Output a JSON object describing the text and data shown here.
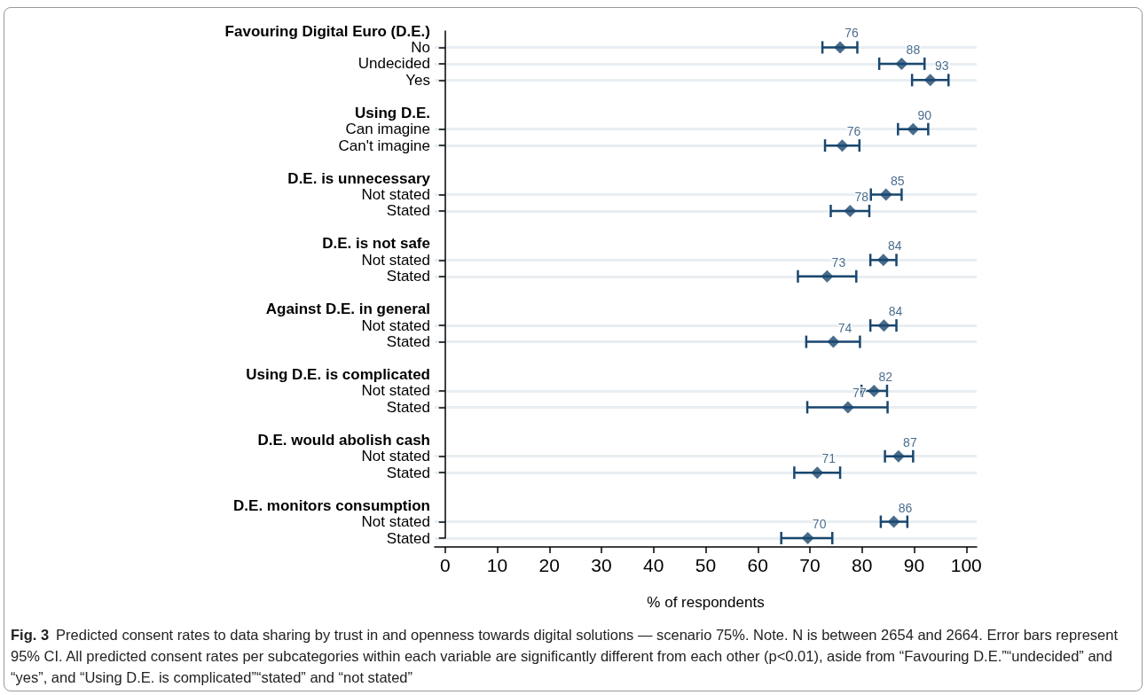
{
  "chart_data": {
    "type": "scatter",
    "orientation": "horizontal",
    "categories": [
      "Favouring Digital Euro (D.E.)",
      "No",
      "Undecided",
      "Yes",
      null,
      "Using D.E.",
      "Can imagine",
      "Can't imagine",
      null,
      "D.E. is unnecessary",
      "Not stated",
      "Stated",
      null,
      "D.E. is not safe",
      "Not stated",
      "Stated",
      null,
      "Against D.E. in general",
      "Not stated",
      "Stated",
      null,
      "Using D.E. is complicated",
      "Not stated",
      "Stated",
      null,
      "D.E. would abolish cash",
      "Not stated",
      "Stated",
      null,
      "D.E. monitors consumption",
      "Not stated",
      "Stated"
    ],
    "values": [
      null,
      75.8,
      87.6,
      93.1,
      null,
      null,
      89.8,
      76.2,
      null,
      null,
      84.6,
      77.7,
      null,
      null,
      84.1,
      73.3,
      null,
      null,
      84.2,
      74.5,
      null,
      null,
      82.3,
      77.3,
      null,
      null,
      87.0,
      71.4,
      null,
      null,
      86.1,
      69.6
    ],
    "errors": [
      null,
      [
        72.4,
        79.1
      ],
      [
        83.3,
        92.0
      ],
      [
        89.6,
        96.6
      ],
      null,
      null,
      [
        86.9,
        92.7
      ],
      [
        72.9,
        79.5
      ],
      null,
      null,
      [
        81.7,
        87.6
      ],
      [
        74.0,
        81.4
      ],
      null,
      null,
      [
        81.6,
        86.6
      ],
      [
        67.7,
        78.9
      ],
      null,
      null,
      [
        81.6,
        86.6
      ],
      [
        69.3,
        79.6
      ],
      null,
      null,
      [
        79.9,
        84.8
      ],
      [
        69.5,
        84.9
      ],
      null,
      null,
      [
        84.4,
        89.8
      ],
      [
        67.0,
        75.8
      ],
      null,
      null,
      [
        83.6,
        88.7
      ],
      [
        64.5,
        74.3
      ]
    ],
    "value_labels": [
      null,
      "76",
      "88",
      "93",
      null,
      null,
      "90",
      "76",
      null,
      null,
      "85",
      "78",
      null,
      null,
      "84",
      "73",
      null,
      null,
      "84",
      "74",
      null,
      null,
      "82",
      "77",
      null,
      null,
      "87",
      "71",
      null,
      null,
      "86",
      "70"
    ],
    "color": "#1a476f",
    "marker": "diamond",
    "grid": "y",
    "xlabel": "% of respondents",
    "xlim": [
      -2,
      102
    ],
    "xticks": [
      0,
      10,
      20,
      30,
      40,
      50,
      60,
      70,
      80,
      90,
      100
    ],
    "annotations": [
      "Fig. 3",
      "Predicted consent rates to data sharing by trust in and openness towards digital solutions — scenario 75%. Note. N is between 2654 and 2664. Error bars represent 95% CI. All predicted consent rates per subcategories within each variable are significantly different from each other (p<0.01), aside from “Favouring D.E.”“undecided” and “yes”, and “Using D.E. is complicated”“stated” and “not stated”"
    ]
  }
}
